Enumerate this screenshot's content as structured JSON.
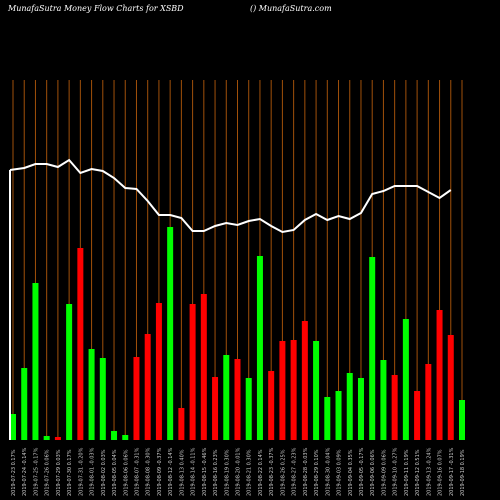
{
  "header": {
    "title": "MunafaSutra  Money Flow  Charts for XSBD",
    "credit": "() MunafaSutra.com"
  },
  "chart_data": {
    "type": "bar",
    "colors": {
      "up": "#00ff00",
      "down": "#ff0000",
      "line": "#ffffff",
      "grid": "#a0500a",
      "background": "#000000"
    },
    "categories": [
      "2019-07-23 0.17%",
      "2019-07-24 -0.14%",
      "2019-07-25 -0.17%",
      "2019-07-26 0.06%",
      "2019-07-29 0.03%",
      "2019-07-30 0.17%",
      "2019-07-31 -0.20%",
      "2019-08-01 -0.03%",
      "2019-08-02 0.03%",
      "2019-08-05 0.04%",
      "2019-08-06 0.06%",
      "2019-08-07 -0.31%",
      "2019-08-08 -0.30%",
      "2019-08-09 -0.37%",
      "2019-08-12 -0.14%",
      "2019-08-13 0.40%",
      "2019-08-14 -0.11%",
      "2019-08-15 -0.46%",
      "2019-08-16 0.23%",
      "2019-08-19 0.30%",
      "2019-08-20 -0.01%",
      "2019-08-21 0.30%",
      "2019-08-22 0.14%",
      "2019-08-23 -0.37%",
      "2019-08-26 0.25%",
      "2019-08-27 -0.23%",
      "2019-08-28 -0.03%",
      "2019-08-29 0.10%",
      "2019-08-30 -0.04%",
      "2019-09-03 0.09%",
      "2019-09-04 0.35%",
      "2019-09-05 -0.17%",
      "2019-09-06 0.06%",
      "2019-09-09 0.06%",
      "2019-09-10 -0.27%",
      "2019-09-11 0.19%",
      "2019-09-12 0.51%",
      "2019-09-13 -0.24%",
      "2019-09-16 0.07%",
      "2019-09-17 -0.31%",
      "2019-09-18 0.19%"
    ],
    "series": [
      {
        "values": [
          26,
          72,
          157,
          4,
          3,
          136,
          192,
          91,
          82,
          9,
          5,
          83,
          106,
          137,
          213,
          32,
          136,
          146,
          63,
          85,
          81,
          62,
          184,
          69,
          99,
          100,
          119,
          99,
          43,
          49,
          67,
          62,
          183,
          80,
          65,
          121,
          49,
          76,
          130,
          105,
          40
        ],
        "direction": [
          "up",
          "up",
          "up",
          "up",
          "down",
          "up",
          "down",
          "up",
          "up",
          "up",
          "up",
          "down",
          "down",
          "down",
          "up",
          "down",
          "down",
          "down",
          "down",
          "up",
          "down",
          "up",
          "up",
          "down",
          "down",
          "down",
          "down",
          "up",
          "up",
          "up",
          "up",
          "up",
          "up",
          "up",
          "down",
          "up",
          "down",
          "down",
          "down",
          "down",
          "up"
        ]
      },
      {
        "values": [
          270,
          272,
          276,
          276,
          273,
          280,
          267,
          271,
          269,
          262,
          252,
          251,
          239,
          225,
          225,
          222,
          209,
          209,
          214,
          217,
          215,
          219,
          221,
          214,
          208,
          210,
          220,
          226,
          220,
          224,
          221,
          227,
          246,
          249,
          254,
          254,
          254,
          248,
          242,
          250,
          0
        ]
      }
    ],
    "ylim": [
      0,
      360
    ]
  }
}
